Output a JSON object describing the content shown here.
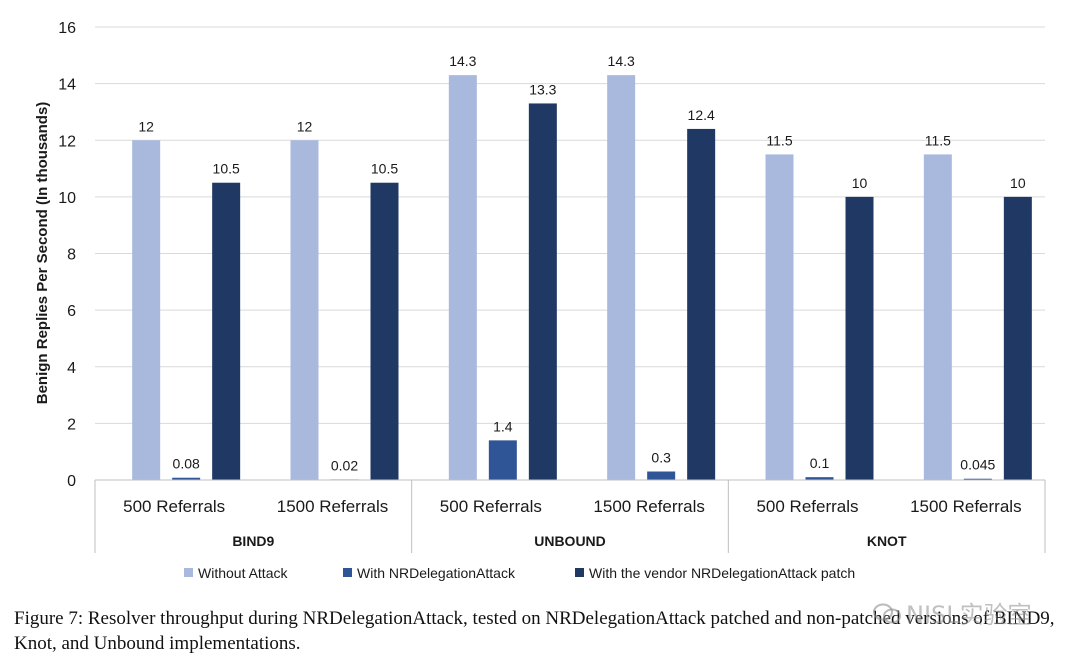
{
  "chart_data": {
    "type": "bar",
    "ylabel": "Benign Replies Per Second (In thousands)",
    "ylim": [
      0,
      16
    ],
    "yticks": [
      0,
      2,
      4,
      6,
      8,
      10,
      12,
      14,
      16
    ],
    "grid": true,
    "legend_position": "bottom",
    "groups": [
      {
        "name": "BIND9",
        "categories": [
          "500 Referrals",
          "1500 Referrals"
        ]
      },
      {
        "name": "UNBOUND",
        "categories": [
          "500 Referrals",
          "1500 Referrals"
        ]
      },
      {
        "name": "KNOT",
        "categories": [
          "500 Referrals",
          "1500 Referrals"
        ]
      }
    ],
    "categories": [
      "500 Referrals",
      "1500 Referrals",
      "500 Referrals",
      "1500 Referrals",
      "500 Referrals",
      "1500 Referrals"
    ],
    "series": [
      {
        "name": "Without Attack",
        "color": "#a9b8dd",
        "values": [
          12,
          12,
          14.3,
          14.3,
          11.5,
          11.5
        ],
        "labels": [
          "12",
          "12",
          "14.3",
          "14.3",
          "11.5",
          "11.5"
        ]
      },
      {
        "name": "With NRDelegationAttack",
        "color": "#2f5597",
        "values": [
          0.08,
          0.02,
          1.4,
          0.3,
          0.1,
          0.045
        ],
        "labels": [
          "0.08",
          "0.02",
          "1.4",
          "0.3",
          "0.1",
          "0.045"
        ]
      },
      {
        "name": "With the vendor NRDelegationAttack patch",
        "color": "#1f3864",
        "values": [
          10.5,
          10.5,
          13.3,
          12.4,
          10,
          10
        ],
        "labels": [
          "10.5",
          "10.5",
          "13.3",
          "12.4",
          "10",
          "10"
        ]
      }
    ]
  },
  "caption": "Figure 7: Resolver throughput during NRDelegationAttack, tested on NRDelegationAttack patched and non-patched versions of BIND9, Knot, and Unbound implementations.",
  "watermark": "NISL实验室",
  "colors": {
    "axis": "#bfbfbf",
    "grid": "#d9d9d9"
  }
}
